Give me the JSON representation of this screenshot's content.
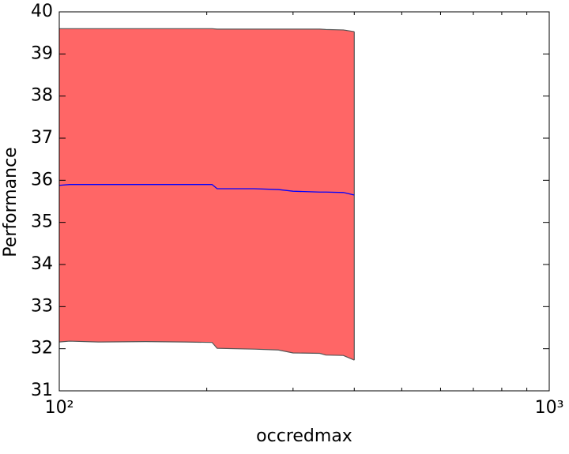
{
  "chart_data": {
    "type": "line",
    "xlabel": "occredmax",
    "ylabel": "Performance",
    "xscale": "log",
    "x": [
      100,
      105,
      120,
      150,
      180,
      205,
      210,
      250,
      280,
      300,
      340,
      350,
      380,
      400
    ],
    "series": [
      {
        "color": "#0000ff",
        "values": [
          35.88,
          35.9,
          35.9,
          35.9,
          35.9,
          35.9,
          35.8,
          35.8,
          35.78,
          35.74,
          35.72,
          35.72,
          35.71,
          35.65
        ]
      }
    ],
    "band": {
      "color": "#ff6666",
      "edge_color": "#555555",
      "upper": [
        39.6,
        39.6,
        39.6,
        39.6,
        39.6,
        39.6,
        39.59,
        39.59,
        39.59,
        39.59,
        39.59,
        39.58,
        39.57,
        39.53
      ],
      "lower": [
        32.16,
        32.18,
        32.16,
        32.17,
        32.16,
        32.15,
        32.01,
        31.99,
        31.97,
        31.9,
        31.89,
        31.85,
        31.84,
        31.73
      ]
    },
    "xlim": [
      100,
      1000
    ],
    "ylim": [
      31,
      40
    ],
    "xticks": [
      {
        "value": 100,
        "label": "10²"
      },
      {
        "value": 1000,
        "label": "10³"
      }
    ],
    "xminorticks": [
      200,
      300,
      400,
      500,
      600,
      700,
      800,
      900
    ],
    "yticks": [
      31,
      32,
      33,
      34,
      35,
      36,
      37,
      38,
      39,
      40
    ]
  }
}
